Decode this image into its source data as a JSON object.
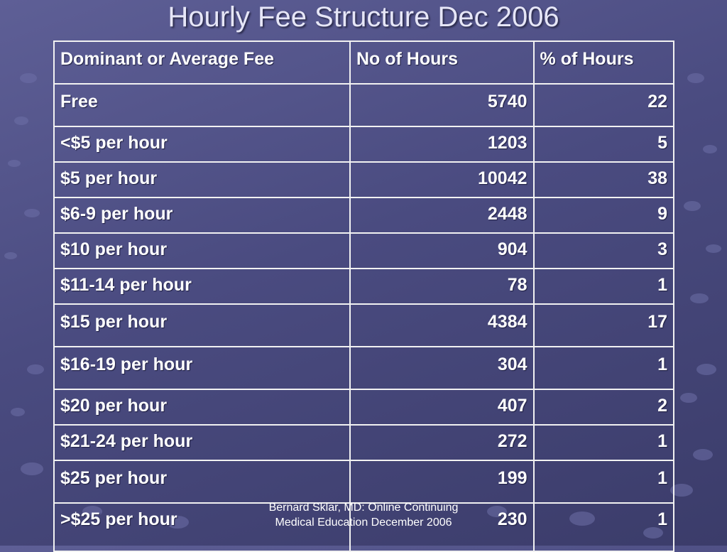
{
  "title": "Hourly Fee Structure Dec 2006",
  "table": {
    "headers": [
      "Dominant or Average Fee",
      "No of Hours",
      "% of Hours"
    ],
    "rows": [
      [
        "Free",
        "5740",
        "22"
      ],
      [
        "<$5 per hour",
        "1203",
        "5"
      ],
      [
        "$5 per hour",
        "10042",
        "38"
      ],
      [
        "$6-9 per hour",
        "2448",
        "9"
      ],
      [
        "$10 per hour",
        "904",
        "3"
      ],
      [
        "$11-14 per hour",
        "78",
        "1"
      ],
      [
        "$15 per hour",
        "4384",
        "17"
      ],
      [
        "$16-19 per hour",
        "304",
        "1"
      ],
      [
        "$20 per hour",
        "407",
        "2"
      ],
      [
        "$21-24 per hour",
        "272",
        "1"
      ],
      [
        "$25 per hour",
        "199",
        "1"
      ],
      [
        ">$25 per hour",
        "230",
        "1"
      ]
    ]
  },
  "footer": {
    "line1": "Bernard Sklar, MD: Online Continuing",
    "line2": "Medical Education December 2006"
  },
  "colors": {
    "background": "#4a4b80",
    "text": "#ffffff",
    "table_border": "#f2f2f2"
  }
}
